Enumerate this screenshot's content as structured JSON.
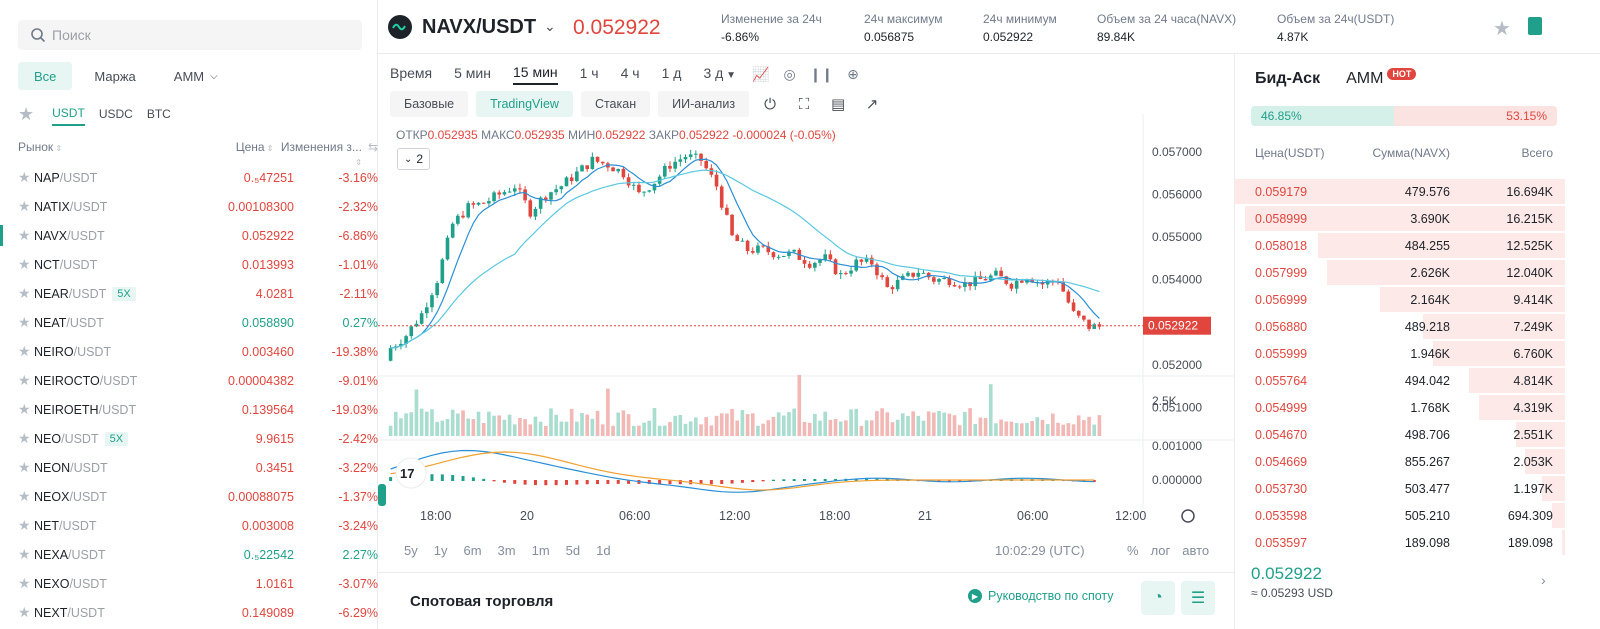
{
  "search": {
    "placeholder": "Поиск"
  },
  "filters": [
    {
      "label": "Все",
      "active": true
    },
    {
      "label": "Маржа",
      "active": false
    },
    {
      "label": "AMM",
      "active": false
    }
  ],
  "quotes": [
    {
      "label": "USDT",
      "active": true
    },
    {
      "label": "USDC",
      "active": false
    },
    {
      "label": "BTC",
      "active": false
    }
  ],
  "market_header": {
    "market": "Рынок",
    "price": "Цена",
    "change": "Изменения з..."
  },
  "markets": [
    {
      "base": "NAP",
      "quote": "/USDT",
      "lev": "",
      "price": "0.₅47251",
      "change": "-3.16%",
      "dir": "down"
    },
    {
      "base": "NATIX",
      "quote": "/USDT",
      "lev": "",
      "price": "0.00108300",
      "change": "-2.32%",
      "dir": "down"
    },
    {
      "base": "NAVX",
      "quote": "/USDT",
      "lev": "",
      "price": "0.052922",
      "change": "-6.86%",
      "dir": "down",
      "selected": true
    },
    {
      "base": "NCT",
      "quote": "/USDT",
      "lev": "",
      "price": "0.013993",
      "change": "-1.01%",
      "dir": "down"
    },
    {
      "base": "NEAR",
      "quote": "/USDT",
      "lev": "5X",
      "price": "4.0281",
      "change": "-2.11%",
      "dir": "down"
    },
    {
      "base": "NEAT",
      "quote": "/USDT",
      "lev": "",
      "price": "0.058890",
      "change": "0.27%",
      "dir": "up"
    },
    {
      "base": "NEIRO",
      "quote": "/USDT",
      "lev": "",
      "price": "0.003460",
      "change": "-19.38%",
      "dir": "down"
    },
    {
      "base": "NEIROCTO",
      "quote": "/USDT",
      "lev": "",
      "price": "0.00004382",
      "change": "-9.01%",
      "dir": "down"
    },
    {
      "base": "NEIROETH",
      "quote": "/USDT",
      "lev": "",
      "price": "0.139564",
      "change": "-19.03%",
      "dir": "down"
    },
    {
      "base": "NEO",
      "quote": "/USDT",
      "lev": "5X",
      "price": "9.9615",
      "change": "-2.42%",
      "dir": "down"
    },
    {
      "base": "NEON",
      "quote": "/USDT",
      "lev": "",
      "price": "0.3451",
      "change": "-3.22%",
      "dir": "down"
    },
    {
      "base": "NEOX",
      "quote": "/USDT",
      "lev": "",
      "price": "0.00088075",
      "change": "-1.37%",
      "dir": "down"
    },
    {
      "base": "NET",
      "quote": "/USDT",
      "lev": "",
      "price": "0.003008",
      "change": "-3.24%",
      "dir": "down"
    },
    {
      "base": "NEXA",
      "quote": "/USDT",
      "lev": "",
      "price": "0.₅22542",
      "change": "2.27%",
      "dir": "up"
    },
    {
      "base": "NEXO",
      "quote": "/USDT",
      "lev": "",
      "price": "1.0161",
      "change": "-3.07%",
      "dir": "down"
    },
    {
      "base": "NEXT",
      "quote": "/USDT",
      "lev": "",
      "price": "0.149089",
      "change": "-6.29%",
      "dir": "down"
    }
  ],
  "ticker": {
    "pair": "NAVX/USDT",
    "last_price": "0.052922",
    "stats": [
      {
        "label": "Изменение за 24ч",
        "value": "-6.86%",
        "color": "red"
      },
      {
        "label": "24ч максимум",
        "value": "0.056875",
        "color": ""
      },
      {
        "label": "24ч минимум",
        "value": "0.052922",
        "color": ""
      },
      {
        "label": "Объем за 24 часа(NAVX)",
        "value": "89.84K",
        "color": ""
      },
      {
        "label": "Объем за 24ч(USDT)",
        "value": "4.87K",
        "color": ""
      }
    ]
  },
  "timeframes": [
    {
      "label": "Время",
      "active": false
    },
    {
      "label": "5 мин",
      "active": false
    },
    {
      "label": "15 мин",
      "active": true
    },
    {
      "label": "1 ч",
      "active": false
    },
    {
      "label": "4 ч",
      "active": false
    },
    {
      "label": "1 д",
      "active": false
    },
    {
      "label": "3 д",
      "active": false
    }
  ],
  "views": [
    {
      "label": "Базовые",
      "active": false
    },
    {
      "label": "TradingView",
      "active": true
    },
    {
      "label": "Стакан",
      "active": false
    },
    {
      "label": "ИИ-анализ",
      "active": false
    }
  ],
  "ohlc": {
    "open_label": "ОТКР",
    "open": "0.052935",
    "high_label": "МАКС",
    "high": "0.052935",
    "low_label": "МИН",
    "low": "0.052922",
    "close_label": "ЗАКР",
    "close": "0.052922",
    "change": "-0.000024 (-0.05%)"
  },
  "indicator_count": "2",
  "chart_data": {
    "type": "candlestick",
    "price_axis": [
      "0.057000",
      "0.056000",
      "0.055000",
      "0.054000",
      "0.053000",
      "0.052000",
      "0.051000"
    ],
    "ylim": [
      0.0505,
      0.0573
    ],
    "current_price_label": "0.052922",
    "current_price": 0.052922,
    "time_axis": [
      "18:00",
      "20",
      "06:00",
      "12:00",
      "18:00",
      "21",
      "06:00",
      "12:00"
    ],
    "volume_axis": [
      "2.5K"
    ],
    "macd_axis": [
      "0.001000",
      "0.000000"
    ],
    "close_path": [
      0.0524,
      0.0527,
      0.0532,
      0.054,
      0.0553,
      0.0557,
      0.0558,
      0.056,
      0.0562,
      0.0556,
      0.056,
      0.0562,
      0.0565,
      0.0568,
      0.0567,
      0.0565,
      0.056,
      0.0563,
      0.0567,
      0.0569,
      0.0568,
      0.0562,
      0.055,
      0.0547,
      0.0547,
      0.0546,
      0.0546,
      0.0544,
      0.0545,
      0.0541,
      0.0544,
      0.0544,
      0.0538,
      0.054,
      0.0542,
      0.054,
      0.054,
      0.0539,
      0.054,
      0.0541,
      0.0539,
      0.0541,
      0.0539,
      0.054,
      0.0532,
      0.0529
    ]
  },
  "range_buttons": [
    "5y",
    "1y",
    "6m",
    "3m",
    "1m",
    "5d",
    "1d"
  ],
  "clock": "10:02:29 (UTC)",
  "scale_options": [
    "%",
    "лог",
    "авто"
  ],
  "spot": {
    "title": "Спотовая торговля",
    "guide": "Руководство по споту"
  },
  "book": {
    "tabs": [
      {
        "label": "Бид-Аск",
        "active": true
      },
      {
        "label": "AMM",
        "active": false
      }
    ],
    "hot": "HOT",
    "buy_ratio": "46.85%",
    "sell_ratio": "53.15%",
    "buy_fraction": 0.4685,
    "headers": {
      "price": "Цена(USDT)",
      "amount": "Сумма(NAVX)",
      "total": "Всего"
    },
    "asks": [
      {
        "price": "0.059179",
        "amount": "479.576",
        "total": "16.694K",
        "depth": 1.0
      },
      {
        "price": "0.058999",
        "amount": "3.690K",
        "total": "16.215K",
        "depth": 0.97
      },
      {
        "price": "0.058018",
        "amount": "484.255",
        "total": "12.525K",
        "depth": 0.75
      },
      {
        "price": "0.057999",
        "amount": "2.626K",
        "total": "12.040K",
        "depth": 0.72
      },
      {
        "price": "0.056999",
        "amount": "2.164K",
        "total": "9.414K",
        "depth": 0.56
      },
      {
        "price": "0.056880",
        "amount": "489.218",
        "total": "7.249K",
        "depth": 0.43
      },
      {
        "price": "0.055999",
        "amount": "1.946K",
        "total": "6.760K",
        "depth": 0.4
      },
      {
        "price": "0.055764",
        "amount": "494.042",
        "total": "4.814K",
        "depth": 0.29
      },
      {
        "price": "0.054999",
        "amount": "1.768K",
        "total": "4.319K",
        "depth": 0.26
      },
      {
        "price": "0.054670",
        "amount": "498.706",
        "total": "2.551K",
        "depth": 0.15
      },
      {
        "price": "0.054669",
        "amount": "855.267",
        "total": "2.053K",
        "depth": 0.12
      },
      {
        "price": "0.053730",
        "amount": "503.477",
        "total": "1.197K",
        "depth": 0.07
      },
      {
        "price": "0.053598",
        "amount": "505.210",
        "total": "694.309",
        "depth": 0.04
      },
      {
        "price": "0.053597",
        "amount": "189.098",
        "total": "189.098",
        "depth": 0.01
      }
    ],
    "last_price": "0.052922",
    "last_usd": "≈ 0.05293 USD"
  }
}
